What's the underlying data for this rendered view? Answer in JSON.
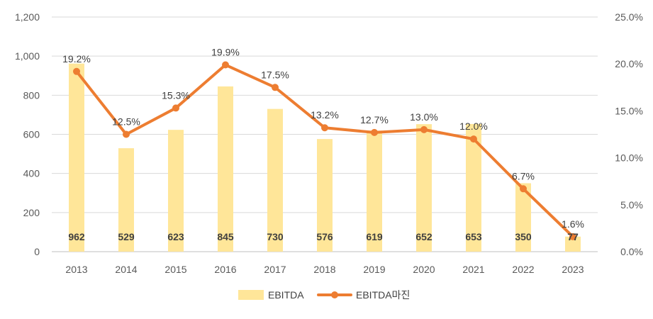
{
  "chart_data": {
    "type": "bar+line",
    "categories": [
      "2013",
      "2014",
      "2015",
      "2016",
      "2017",
      "2018",
      "2019",
      "2020",
      "2021",
      "2022",
      "2023"
    ],
    "series": [
      {
        "name": "EBITDA",
        "type": "bar",
        "axis": "left",
        "color": "#FFE699",
        "values": [
          962,
          529,
          623,
          845,
          730,
          576,
          619,
          652,
          653,
          350,
          77
        ],
        "labels": [
          "962",
          "529",
          "623",
          "845",
          "730",
          "576",
          "619",
          "652",
          "653",
          "350",
          "77"
        ]
      },
      {
        "name": "EBITDA마진",
        "type": "line",
        "axis": "right",
        "color": "#ED7D31",
        "values": [
          19.2,
          12.5,
          15.3,
          19.9,
          17.5,
          13.2,
          12.7,
          13.0,
          12.0,
          6.7,
          1.6
        ],
        "labels": [
          "19.2%",
          "12.5%",
          "15.3%",
          "19.9%",
          "17.5%",
          "13.2%",
          "12.7%",
          "13.0%",
          "12.0%",
          "6.7%",
          "1.6%"
        ]
      }
    ],
    "y_left": {
      "min": 0,
      "max": 1200,
      "ticks": [
        "0",
        "200",
        "400",
        "600",
        "800",
        "1,000",
        "1,200"
      ]
    },
    "y_right": {
      "min": 0,
      "max": 25,
      "ticks": [
        "0.0%",
        "5.0%",
        "10.0%",
        "15.0%",
        "20.0%",
        "25.0%"
      ]
    },
    "legend": {
      "position": "bottom",
      "entries": [
        "EBITDA",
        "EBITDA마진"
      ]
    },
    "grid": true,
    "title": "",
    "xlabel": "",
    "ylabel": ""
  }
}
